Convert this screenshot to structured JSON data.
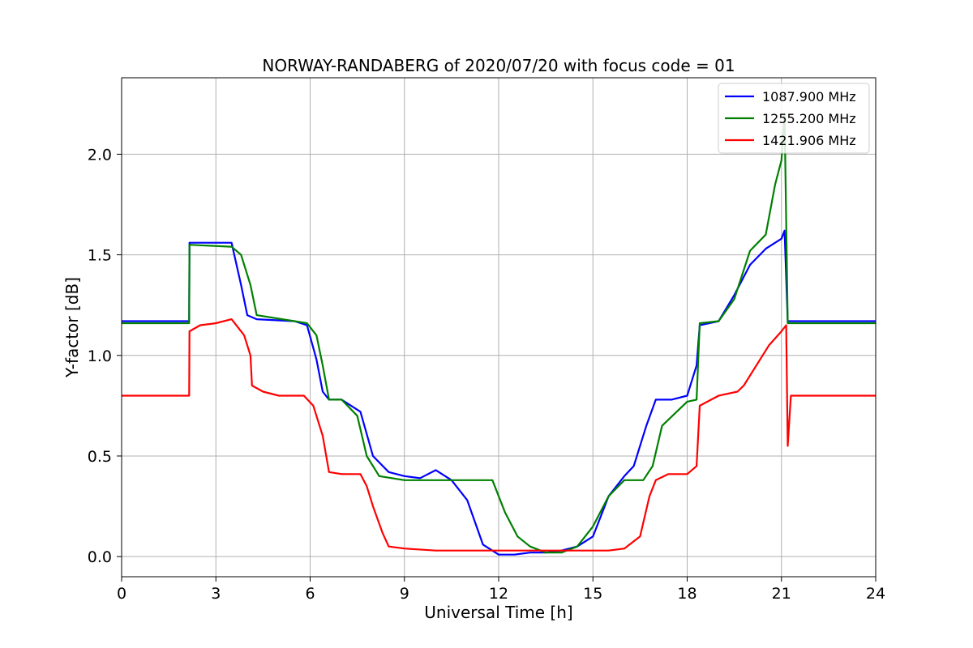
{
  "chart_data": {
    "type": "line",
    "title": "NORWAY-RANDABERG of 2020/07/20 with focus code = 01",
    "xlabel": "Universal Time [h]",
    "ylabel": "Y-factor [dB]",
    "xlim": [
      0,
      24
    ],
    "ylim": [
      -0.1,
      2.38
    ],
    "xticks": [
      0,
      3,
      6,
      9,
      12,
      15,
      18,
      21,
      24
    ],
    "yticks": [
      0.0,
      0.5,
      1.0,
      1.5,
      2.0
    ],
    "xtick_labels": [
      "0",
      "3",
      "6",
      "9",
      "12",
      "15",
      "18",
      "21",
      "24"
    ],
    "ytick_labels": [
      "0.0",
      "0.5",
      "1.0",
      "1.5",
      "2.0"
    ],
    "grid": true,
    "legend_position": "top-right",
    "series": [
      {
        "name": "1087.900 MHz",
        "color": "#0000ff",
        "x": [
          0,
          2.15,
          2.16,
          3.5,
          3.8,
          4.0,
          4.3,
          5.5,
          5.9,
          6.2,
          6.4,
          6.6,
          7.0,
          7.6,
          8.0,
          8.5,
          9.0,
          9.5,
          10.0,
          10.5,
          11.0,
          11.5,
          12.0,
          12.5,
          13.0,
          13.5,
          14.0,
          14.5,
          15.0,
          15.5,
          16.0,
          16.3,
          16.7,
          17.0,
          17.5,
          18.0,
          18.3,
          18.4,
          19.0,
          19.5,
          20.0,
          20.5,
          21.0,
          21.1,
          21.2,
          24
        ],
        "y": [
          1.17,
          1.17,
          1.56,
          1.56,
          1.35,
          1.2,
          1.18,
          1.17,
          1.15,
          0.98,
          0.82,
          0.78,
          0.78,
          0.72,
          0.5,
          0.42,
          0.4,
          0.39,
          0.43,
          0.38,
          0.28,
          0.06,
          0.01,
          0.01,
          0.02,
          0.02,
          0.03,
          0.05,
          0.1,
          0.3,
          0.4,
          0.45,
          0.65,
          0.78,
          0.78,
          0.8,
          0.95,
          1.15,
          1.17,
          1.3,
          1.45,
          1.53,
          1.58,
          1.62,
          1.17,
          1.17
        ]
      },
      {
        "name": "1255.200 MHz",
        "color": "#008000",
        "x": [
          0,
          2.15,
          2.16,
          3.5,
          3.8,
          4.1,
          4.3,
          5.5,
          5.9,
          6.2,
          6.4,
          6.6,
          7.0,
          7.5,
          7.8,
          8.2,
          9.0,
          10.0,
          11.0,
          11.8,
          12.2,
          12.6,
          13.0,
          13.5,
          14.0,
          14.5,
          15.0,
          15.5,
          16.0,
          16.6,
          16.9,
          17.2,
          18.0,
          18.3,
          18.4,
          19.0,
          19.5,
          20.0,
          20.5,
          20.8,
          21.0,
          21.1,
          21.2,
          24
        ],
        "y": [
          1.16,
          1.16,
          1.55,
          1.54,
          1.5,
          1.35,
          1.2,
          1.17,
          1.16,
          1.1,
          0.95,
          0.78,
          0.78,
          0.7,
          0.5,
          0.4,
          0.38,
          0.38,
          0.38,
          0.38,
          0.22,
          0.1,
          0.05,
          0.02,
          0.02,
          0.05,
          0.15,
          0.3,
          0.38,
          0.38,
          0.45,
          0.65,
          0.77,
          0.78,
          1.16,
          1.17,
          1.28,
          1.52,
          1.6,
          1.85,
          1.97,
          2.2,
          1.16,
          1.16
        ]
      },
      {
        "name": "1421.906 MHz",
        "color": "#ff0000",
        "x": [
          0,
          2.15,
          2.16,
          2.5,
          3.0,
          3.5,
          3.9,
          4.1,
          4.15,
          4.5,
          5.0,
          5.8,
          6.1,
          6.4,
          6.6,
          7.0,
          7.6,
          7.8,
          8.0,
          8.3,
          8.5,
          9.0,
          10.0,
          11.0,
          12.0,
          13.0,
          14.0,
          15.0,
          15.5,
          16.0,
          16.5,
          16.8,
          17.0,
          17.4,
          18.0,
          18.3,
          18.4,
          19.0,
          19.6,
          19.8,
          20.2,
          20.6,
          21.0,
          21.15,
          21.2,
          21.3,
          24
        ],
        "y": [
          0.8,
          0.8,
          1.12,
          1.15,
          1.16,
          1.18,
          1.1,
          1.0,
          0.85,
          0.82,
          0.8,
          0.8,
          0.75,
          0.6,
          0.42,
          0.41,
          0.41,
          0.35,
          0.25,
          0.12,
          0.05,
          0.04,
          0.03,
          0.03,
          0.03,
          0.03,
          0.03,
          0.03,
          0.03,
          0.04,
          0.1,
          0.3,
          0.38,
          0.41,
          0.41,
          0.45,
          0.75,
          0.8,
          0.82,
          0.85,
          0.95,
          1.05,
          1.12,
          1.15,
          0.55,
          0.8,
          0.8
        ]
      }
    ]
  }
}
